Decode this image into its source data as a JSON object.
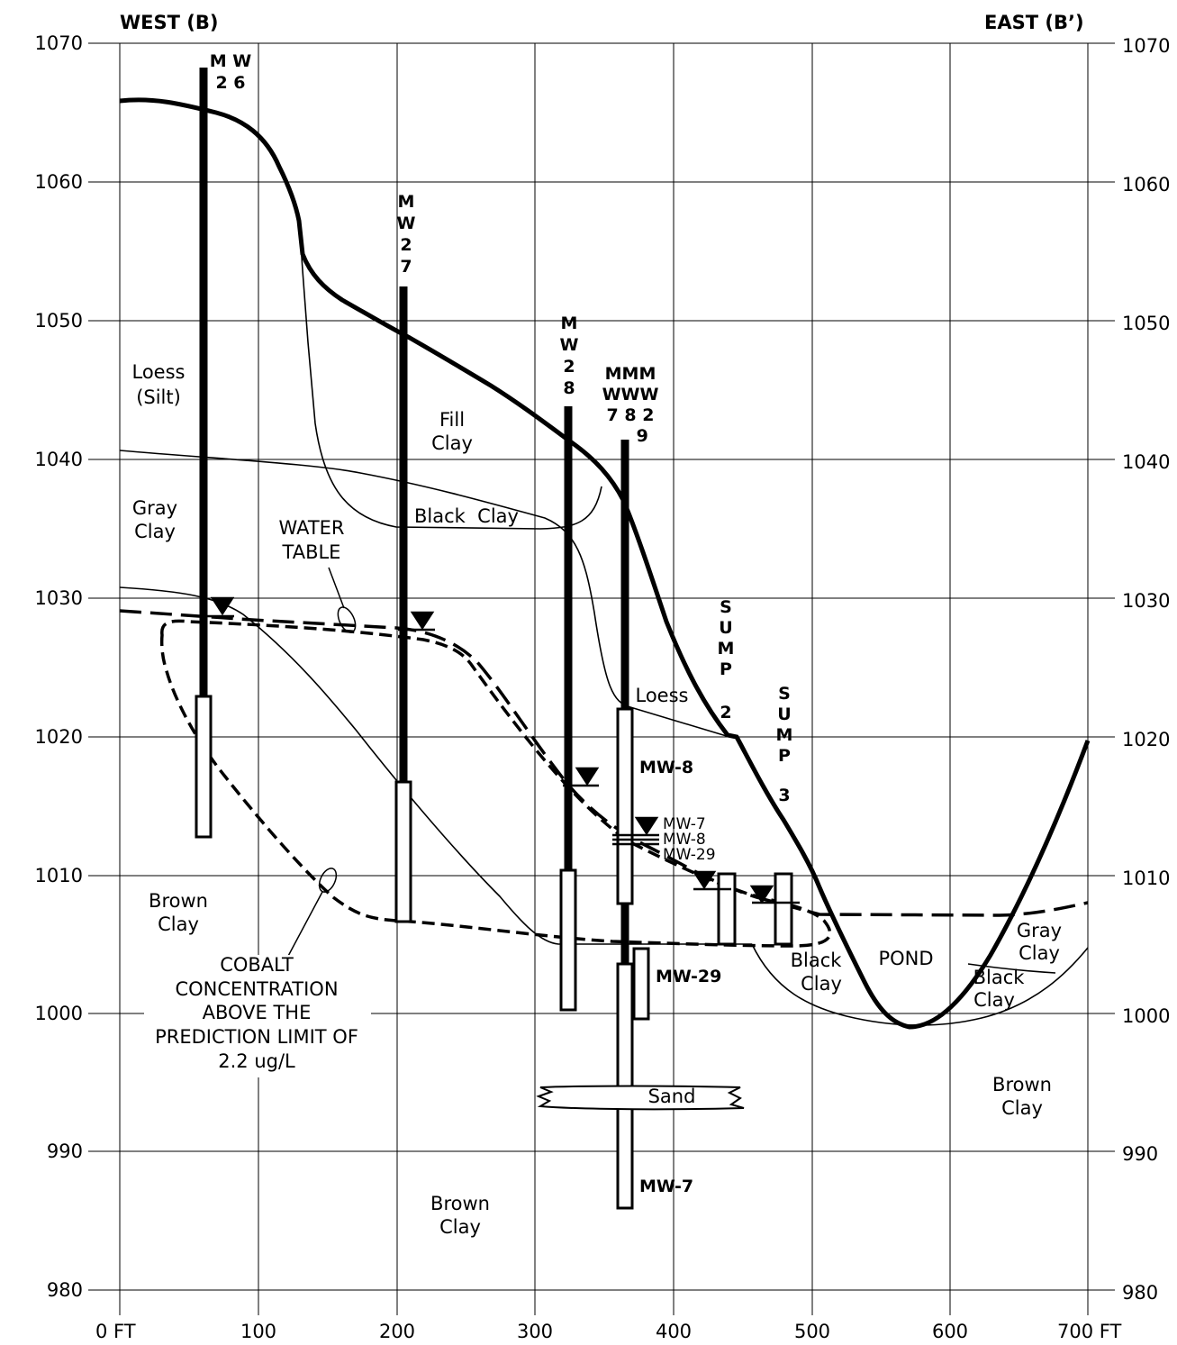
{
  "title_west": "WEST (B)",
  "title_east": "EAST (B’)",
  "axis_y_ticks": [
    "1070",
    "1060",
    "1050",
    "1040",
    "1030",
    "1020",
    "1010",
    "1000",
    "990",
    "980"
  ],
  "axis_x_ticks": [
    "0 FT",
    "100",
    "200",
    "300",
    "400",
    "500",
    "600",
    "700 FT"
  ],
  "wells": {
    "mw26": [
      "M W",
      "2 6"
    ],
    "mw27": [
      "M",
      "W",
      "2",
      "7"
    ],
    "mw28": [
      "M",
      "W",
      "2",
      "8"
    ],
    "mw_group": [
      "MMM",
      "WWW",
      "7 8 2",
      "    9"
    ]
  },
  "sumps": {
    "sump2": [
      "S",
      "U",
      "M",
      "P",
      "2"
    ],
    "sump3": [
      "S",
      "U",
      "M",
      "P",
      "3"
    ]
  },
  "screen_labels": {
    "mw8": "MW-8",
    "mw29": "MW-29",
    "mw7": "MW-7",
    "wl_mw7": "MW-7",
    "wl_mw8": "MW-8",
    "wl_mw29": "MW-29"
  },
  "layers": {
    "loess_silt": [
      "Loess",
      "(Silt)"
    ],
    "fill_clay": [
      "Fill",
      "Clay"
    ],
    "gray_clay_w": [
      "Gray",
      "Clay"
    ],
    "black_clay_top": "Black  Clay",
    "loess_mid": "Loess",
    "brown_clay_w": [
      "Brown",
      "Clay"
    ],
    "black_clay_pond": [
      "Black",
      "Clay"
    ],
    "pond": "POND",
    "gray_clay_e": [
      "Gray",
      "Clay"
    ],
    "black_clay_e": [
      "Black",
      "Clay"
    ],
    "brown_clay_e": [
      "Brown",
      "Clay"
    ],
    "sand": "Sand",
    "brown_clay_bottom": [
      "Brown",
      "Clay"
    ]
  },
  "callouts": {
    "water_table": [
      "WATER",
      "TABLE"
    ],
    "cobalt": [
      "COBALT",
      "CONCENTRATION",
      "ABOVE THE",
      "PREDICTION LIMIT OF",
      "2.2 ug/L"
    ]
  }
}
